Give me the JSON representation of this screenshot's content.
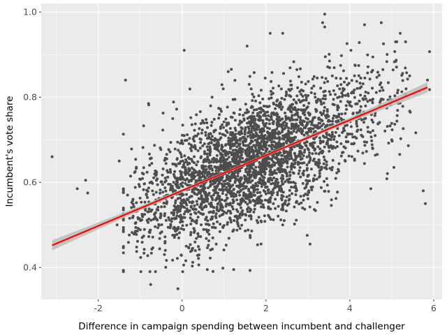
{
  "chart_data": {
    "type": "scatter",
    "title": "",
    "xlabel": "Difference in campaign spending between incumbent and challenger",
    "ylabel": "Incumbent's vote share",
    "xlim": [
      -3.36,
      6.2
    ],
    "ylim": [
      0.325,
      1.02
    ],
    "x_ticks": [
      -2,
      0,
      2,
      4,
      6
    ],
    "x_tick_labels": [
      "-2",
      "0",
      "2",
      "4",
      "6"
    ],
    "y_ticks": [
      0.4,
      0.6,
      0.8,
      1.0
    ],
    "y_tick_labels": [
      "0.4",
      "0.6",
      "0.8",
      "1.0"
    ],
    "grid": true,
    "legend": "none",
    "colors": {
      "panel_background": "#ebebeb",
      "grid_major": "#ffffff",
      "points": "#4d4d4d",
      "fit_line": "#ff0000",
      "confidence_band": "#bdbdbd"
    },
    "point_cloud": {
      "approx_count": 3200,
      "x_range": [
        -3.1,
        5.9
      ],
      "y_range": [
        0.35,
        0.99
      ],
      "density_center_x": 1.6,
      "note_trend": "positive linear association"
    },
    "series": [
      {
        "values": [
          {
            "x": -3.1,
            "y": 0.66
          },
          {
            "x": -2.5,
            "y": 0.585
          },
          {
            "x": -2.3,
            "y": 0.605
          },
          {
            "x": -2.25,
            "y": 0.575
          },
          {
            "x": -1.35,
            "y": 0.84
          },
          {
            "x": -1.55,
            "y": 0.5
          },
          {
            "x": -1.5,
            "y": 0.65
          },
          {
            "x": -1.3,
            "y": 0.57
          },
          {
            "x": -0.8,
            "y": 0.785
          },
          {
            "x": -0.75,
            "y": 0.36
          },
          {
            "x": -0.4,
            "y": 0.61
          },
          {
            "x": -0.1,
            "y": 0.35
          },
          {
            "x": 0.05,
            "y": 0.91
          },
          {
            "x": 1.1,
            "y": 0.86
          },
          {
            "x": 1.6,
            "y": 0.83
          },
          {
            "x": 1.55,
            "y": 0.92
          },
          {
            "x": 2.1,
            "y": 0.95
          },
          {
            "x": 2.4,
            "y": 0.95
          },
          {
            "x": 3.05,
            "y": 0.455
          },
          {
            "x": 3.4,
            "y": 0.995
          },
          {
            "x": 3.35,
            "y": 0.975
          },
          {
            "x": 3.4,
            "y": 0.965
          },
          {
            "x": 4.35,
            "y": 0.97
          },
          {
            "x": 4.75,
            "y": 0.975
          },
          {
            "x": 5.2,
            "y": 0.95
          },
          {
            "x": 5.85,
            "y": 0.84
          },
          {
            "x": 5.8,
            "y": 0.55
          },
          {
            "x": 5.75,
            "y": 0.58
          },
          {
            "x": 4.5,
            "y": 0.585
          },
          {
            "x": 5.05,
            "y": 0.635
          },
          {
            "x": 0.6,
            "y": 0.395
          },
          {
            "x": 0.1,
            "y": 0.45
          },
          {
            "x": 2.4,
            "y": 0.5
          },
          {
            "x": -0.4,
            "y": 0.44
          }
        ]
      }
    ],
    "fit_line": {
      "x": [
        -3.1,
        5.85
      ],
      "y": [
        0.452,
        0.823
      ]
    },
    "confidence_band_halfwidth": {
      "at_ends": 0.012,
      "at_center": 0.003
    }
  }
}
